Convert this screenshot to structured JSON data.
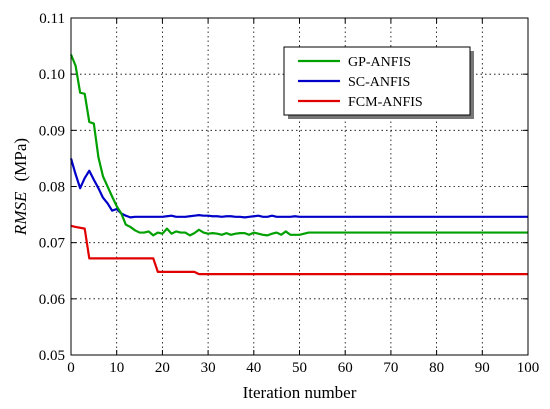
{
  "chart_data": {
    "type": "line",
    "title": "",
    "xlabel": "Iteration number",
    "ylabel_italic": "RMSE",
    "ylabel_unit": "(MPa)",
    "xlim": [
      0,
      100
    ],
    "ylim": [
      0.05,
      0.11
    ],
    "xticks": [
      0,
      10,
      20,
      30,
      40,
      50,
      60,
      70,
      80,
      90,
      100
    ],
    "yticks": [
      0.05,
      0.06,
      0.07,
      0.08,
      0.09,
      0.1,
      0.11
    ],
    "ytick_labels": [
      "0.05",
      "0.06",
      "0.07",
      "0.08",
      "0.09",
      "0.10",
      "0.11"
    ],
    "grid": true,
    "legend_position": "top-right",
    "series": [
      {
        "name": "GP-ANFIS",
        "color": "#00a000",
        "x": [
          0,
          1,
          2,
          3,
          4,
          5,
          6,
          7,
          8,
          9,
          10,
          11,
          12,
          13,
          14,
          15,
          16,
          17,
          18,
          19,
          20,
          21,
          22,
          23,
          24,
          25,
          26,
          27,
          28,
          29,
          30,
          31,
          32,
          33,
          34,
          35,
          36,
          37,
          38,
          39,
          40,
          41,
          42,
          43,
          44,
          45,
          46,
          47,
          48,
          49,
          50,
          51,
          52,
          100
        ],
        "y": [
          0.1035,
          0.1015,
          0.0967,
          0.0965,
          0.0915,
          0.0912,
          0.0852,
          0.0818,
          0.08,
          0.0782,
          0.0765,
          0.0752,
          0.0732,
          0.0728,
          0.0722,
          0.0718,
          0.0718,
          0.072,
          0.0713,
          0.0718,
          0.0716,
          0.0725,
          0.0716,
          0.072,
          0.0718,
          0.0718,
          0.0713,
          0.0717,
          0.0723,
          0.0718,
          0.0716,
          0.0717,
          0.0716,
          0.0714,
          0.0717,
          0.0714,
          0.0716,
          0.0717,
          0.0717,
          0.0714,
          0.0718,
          0.0716,
          0.0714,
          0.0713,
          0.0716,
          0.0718,
          0.0714,
          0.072,
          0.0714,
          0.0714,
          0.0714,
          0.0716,
          0.0718,
          0.0718
        ]
      },
      {
        "name": "SC-ANFIS",
        "color": "#0000c8",
        "x": [
          0,
          1,
          2,
          3,
          4,
          5,
          6,
          7,
          8,
          9,
          10,
          11,
          12,
          13,
          14,
          15,
          16,
          17,
          18,
          19,
          20,
          21,
          22,
          23,
          24,
          25,
          26,
          27,
          28,
          29,
          30,
          31,
          32,
          33,
          34,
          35,
          36,
          37,
          38,
          39,
          40,
          41,
          42,
          43,
          44,
          45,
          46,
          47,
          48,
          49,
          50,
          51,
          52,
          100
        ],
        "y": [
          0.085,
          0.0822,
          0.0797,
          0.0815,
          0.0828,
          0.0812,
          0.0797,
          0.078,
          0.077,
          0.0757,
          0.076,
          0.0752,
          0.0748,
          0.0745,
          0.0746,
          0.0746,
          0.0746,
          0.0746,
          0.0746,
          0.0746,
          0.0746,
          0.0747,
          0.0748,
          0.0746,
          0.0746,
          0.0746,
          0.0747,
          0.0748,
          0.0749,
          0.0748,
          0.0748,
          0.0747,
          0.0747,
          0.0746,
          0.0747,
          0.0747,
          0.0746,
          0.0746,
          0.0745,
          0.0746,
          0.0747,
          0.0748,
          0.0746,
          0.0746,
          0.0748,
          0.0746,
          0.0746,
          0.0746,
          0.0746,
          0.0747,
          0.0746,
          0.0746,
          0.0746,
          0.0746
        ]
      },
      {
        "name": "FCM-ANFIS",
        "color": "#e00000",
        "x": [
          0,
          1,
          3,
          4,
          18,
          19,
          27,
          28,
          100
        ],
        "y": [
          0.073,
          0.0728,
          0.0725,
          0.0672,
          0.0672,
          0.0648,
          0.0648,
          0.0644,
          0.0644
        ]
      }
    ]
  }
}
